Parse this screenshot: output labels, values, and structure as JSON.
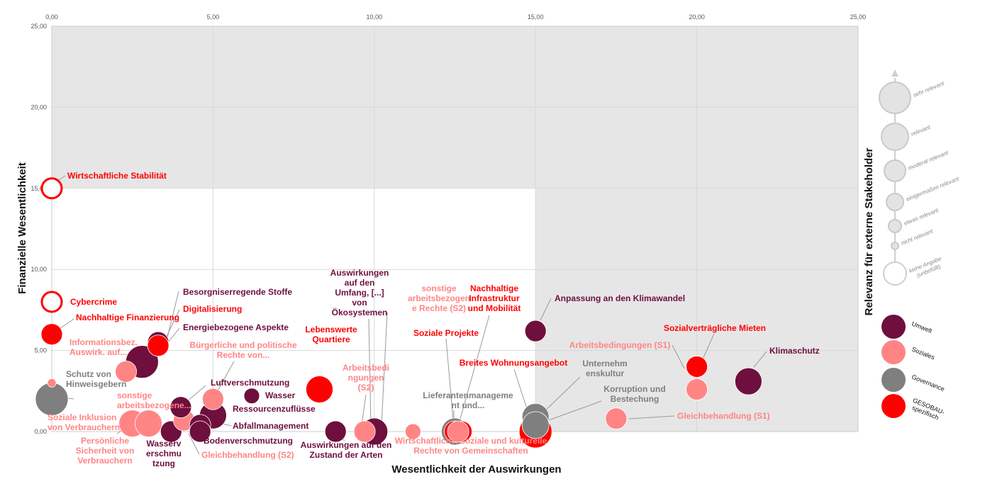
{
  "colors": {
    "umwelt": "#6e0f3e",
    "soziales": "#ff8585",
    "governance": "#7f7f7f",
    "gesobau": "#ff0000"
  },
  "chart_data": {
    "type": "scatter",
    "xlabel": "Wesentlichkeit der Auswirkungen",
    "ylabel": "Finanzielle Wesentlichkeit",
    "size_legend_title": "Relevanz für externe Stakeholder",
    "xlim": [
      0,
      25
    ],
    "ylim": [
      0,
      25
    ],
    "xticks": [
      "0,00",
      "5,00",
      "10,00",
      "15,00",
      "20,00",
      "25,00"
    ],
    "yticks": [
      "0,00",
      "5,00",
      "10,00",
      "15,00",
      "20,00",
      "25,00"
    ],
    "shaded_regions": [
      {
        "x": [
          0,
          25
        ],
        "y": [
          15,
          25
        ]
      },
      {
        "x": [
          15,
          25
        ],
        "y": [
          0,
          15
        ]
      }
    ],
    "grid": true,
    "legend_position": "right",
    "size_legend": [
      {
        "label": "sehr relevant",
        "size": 6
      },
      {
        "label": "relevant",
        "size": 5
      },
      {
        "label": "moderat relevant",
        "size": 4
      },
      {
        "label": "einigermaßen relevant",
        "size": 3
      },
      {
        "label": "etwas relevant",
        "size": 2
      },
      {
        "label": "nicht relevant",
        "size": 1
      },
      {
        "label": "keine Angabe (unbefüllt)",
        "size": 0
      }
    ],
    "categories": [
      {
        "key": "umwelt",
        "label": "Umwelt"
      },
      {
        "key": "soziales",
        "label": "Soziales"
      },
      {
        "key": "governance",
        "label": "Governance"
      },
      {
        "key": "gesobau",
        "label": "GESOBAU-spezifisch"
      }
    ],
    "points": [
      {
        "label": "Wirtschaftliche Stabilität",
        "x": 0,
        "y": 15,
        "size": 0,
        "cat": "gesobau"
      },
      {
        "label": "Cybercrime",
        "x": 0,
        "y": 8,
        "size": 0,
        "cat": "gesobau"
      },
      {
        "label": "Nachhaltige Finanzierung",
        "x": 0,
        "y": 6,
        "size": 3,
        "cat": "gesobau"
      },
      {
        "label": "Informationsbez. Auswirk. auf...",
        "x": 0,
        "y": 3,
        "size": 1,
        "cat": "soziales"
      },
      {
        "label": "Schutz von Hinweisgebern",
        "x": 0,
        "y": 2,
        "size": 5,
        "cat": "governance"
      },
      {
        "label": "Soziale Inklusion von Verbrauchern",
        "x": 2.5,
        "y": 0.5,
        "size": 4,
        "cat": "soziales"
      },
      {
        "label": "sonstige arbeitsbezogene...",
        "x": 2.3,
        "y": 3.7,
        "size": 3,
        "cat": "soziales"
      },
      {
        "label": "Persönliche Sicherheit von Verbrauchern",
        "x": 3,
        "y": 0.5,
        "size": 4,
        "cat": "soziales"
      },
      {
        "label": "Besorgniserregende Stoffe",
        "x": 3.3,
        "y": 5.5,
        "size": 3,
        "cat": "umwelt"
      },
      {
        "label": "Digitalisierung",
        "x": 3.3,
        "y": 5.3,
        "size": 3,
        "cat": "gesobau"
      },
      {
        "label": "Energiebezogene Aspekte",
        "x": 2.8,
        "y": 4.3,
        "size": 5,
        "cat": "umwelt"
      },
      {
        "label": "Wasserverschmutzung",
        "x": 3.7,
        "y": 0,
        "size": 3,
        "cat": "umwelt"
      },
      {
        "label": "Gleichbehandlung (S2)",
        "x": 4.1,
        "y": 0.7,
        "size": 3,
        "cat": "soziales"
      },
      {
        "label": "Luftverschmutzung",
        "x": 4,
        "y": 1.5,
        "size": 3,
        "cat": "umwelt"
      },
      {
        "label": "Bürgerliche und politische Rechte von...",
        "x": 5,
        "y": 2,
        "size": 3,
        "cat": "soziales"
      },
      {
        "label": "Ressourcenzuflüsse",
        "x": 5,
        "y": 1,
        "size": 4,
        "cat": "umwelt"
      },
      {
        "label": "Abfallmanagement",
        "x": 4.6,
        "y": 0.4,
        "size": 3,
        "cat": "umwelt"
      },
      {
        "label": "Bodenverschmutzung",
        "x": 4.6,
        "y": 0,
        "size": 3,
        "cat": "umwelt"
      },
      {
        "label": "Wasser",
        "x": 6.2,
        "y": 2.2,
        "size": 2,
        "cat": "umwelt"
      },
      {
        "label": "Lebenswerte Quartiere",
        "x": 8.3,
        "y": 2.6,
        "size": 4,
        "cat": "gesobau"
      },
      {
        "label": "Auswirkungen auf den Zustand der Arten",
        "x": 8.8,
        "y": 0,
        "size": 3,
        "cat": "umwelt"
      },
      {
        "label": "Arbeitsbedingungen (S2)",
        "x": 9.7,
        "y": 0,
        "size": 3,
        "cat": "soziales"
      },
      {
        "label": "Auswirkungen auf den Umfang, [...] von Ökosystemen",
        "x": 10,
        "y": 0,
        "size": 4,
        "cat": "umwelt"
      },
      {
        "label": "sonstige arbeitsbezogene Rechte (S2)",
        "x": 11.2,
        "y": 0,
        "size": 2,
        "cat": "soziales"
      },
      {
        "label": "Lieferantenmanagement und...",
        "x": 12.5,
        "y": 0,
        "size": 4,
        "cat": "governance"
      },
      {
        "label": "Soziale Projekte",
        "x": 12.5,
        "y": 0,
        "size": 3,
        "cat": "gesobau"
      },
      {
        "label": "Nachhaltige Infrastruktur und Mobilität",
        "x": 12.7,
        "y": 0,
        "size": 3,
        "cat": "gesobau"
      },
      {
        "label": "Wirtschaftliche, soziale und kulturelle Rechte von Gemeinschaften",
        "x": 12.6,
        "y": 0,
        "size": 3,
        "cat": "soziales"
      },
      {
        "label": "Unternehmenskultur",
        "x": 15,
        "y": 0.9,
        "size": 4,
        "cat": "governance"
      },
      {
        "label": "Korruption und Bestechung",
        "x": 15,
        "y": 0.4,
        "size": 4,
        "cat": "governance"
      },
      {
        "label": "Breites Wohnungsangebot",
        "x": 15,
        "y": 0,
        "size": 5,
        "cat": "gesobau"
      },
      {
        "label": "Anpassung an den Klimawandel",
        "x": 15,
        "y": 6.2,
        "size": 3,
        "cat": "umwelt"
      },
      {
        "label": "Gleichbehandlung (S1)",
        "x": 17.5,
        "y": 0.8,
        "size": 3,
        "cat": "soziales"
      },
      {
        "label": "Sozialverträgliche Mieten",
        "x": 20,
        "y": 4,
        "size": 3,
        "cat": "gesobau"
      },
      {
        "label": "Arbeitsbedingungen (S1)",
        "x": 20,
        "y": 2.6,
        "size": 3,
        "cat": "soziales"
      },
      {
        "label": "Klimaschutz",
        "x": 21.6,
        "y": 3.1,
        "size": 4,
        "cat": "umwelt"
      }
    ],
    "annotations": [
      {
        "text": [
          "Wirtschaftliche Stabilität"
        ],
        "point": 0,
        "cat": "gesobau",
        "tx": 95,
        "ty": 252,
        "anchor": "start",
        "line": [
          [
            92,
            248
          ],
          [
            80,
            256
          ]
        ]
      },
      {
        "text": [
          "Cybercrime"
        ],
        "point": 1,
        "cat": "gesobau",
        "tx": 99,
        "ty": 430,
        "anchor": "start",
        "line": null
      },
      {
        "text": [
          "Nachhaltige Finanzierung"
        ],
        "point": 2,
        "cat": "gesobau",
        "tx": 107,
        "ty": 452,
        "anchor": "start",
        "line": [
          [
            104,
            450
          ],
          [
            84,
            464
          ]
        ]
      },
      {
        "text": [
          "Informationsbez.",
          "Auswirk. auf..."
        ],
        "point": 3,
        "cat": "soziales",
        "tx": 98,
        "ty": 487,
        "anchor": "start",
        "line": null
      },
      {
        "text": [
          "Schutz von",
          "Hinweisgebern"
        ],
        "point": 4,
        "cat": "governance",
        "tx": 93,
        "ty": 532,
        "anchor": "start",
        "line": [
          [
            104,
            563
          ],
          [
            82,
            560
          ]
        ]
      },
      {
        "text": [
          "sonstige",
          "arbeitsbezogene..."
        ],
        "point": 6,
        "cat": "soziales",
        "tx": 165,
        "ty": 562,
        "anchor": "start",
        "line": null
      },
      {
        "text": [
          "Soziale Inklusion",
          "von Verbrauchern"
        ],
        "point": 5,
        "cat": "soziales",
        "tx": 67,
        "ty": 593,
        "anchor": "start",
        "line": null
      },
      {
        "text": [
          "Persönliche",
          "Sicherheit von",
          "Verbrauchern"
        ],
        "point": 7,
        "cat": "soziales",
        "tx": 148,
        "ty": 626,
        "anchor": "middle",
        "line": [
          [
            165,
            612
          ],
          [
            176,
            604
          ]
        ]
      },
      {
        "text": [
          "Besorgniserregende Stoffe"
        ],
        "point": 8,
        "cat": "umwelt",
        "tx": 258,
        "ty": 416,
        "anchor": "start",
        "line": [
          [
            252,
            411
          ],
          [
            236,
            476
          ]
        ]
      },
      {
        "text": [
          "Digitalisierung"
        ],
        "point": 9,
        "cat": "gesobau",
        "tx": 258,
        "ty": 440,
        "anchor": "start",
        "line": [
          [
            253,
            437
          ],
          [
            232,
            481
          ]
        ]
      },
      {
        "text": [
          "Energiebezogene Aspekte"
        ],
        "point": 10,
        "cat": "umwelt",
        "tx": 258,
        "ty": 466,
        "anchor": "start",
        "line": [
          [
            253,
            463
          ],
          [
            226,
            497
          ]
        ]
      },
      {
        "text": [
          "Bürgerliche und politische",
          "Rechte von..."
        ],
        "point": 14,
        "cat": "soziales",
        "tx": 343,
        "ty": 491,
        "anchor": "middle",
        "line": [
          [
            330,
            510
          ],
          [
            305,
            555
          ]
        ]
      },
      {
        "text": [
          "Luftverschmutzung"
        ],
        "point": 13,
        "cat": "umwelt",
        "tx": 297,
        "ty": 544,
        "anchor": "start",
        "line": [
          [
            290,
            544
          ],
          [
            262,
            568
          ]
        ]
      },
      {
        "text": [
          "Wasser"
        ],
        "point": 18,
        "cat": "umwelt",
        "tx": 374,
        "ty": 562,
        "anchor": "start",
        "line": null
      },
      {
        "text": [
          "Ressourcenzuflüsse"
        ],
        "point": 15,
        "cat": "umwelt",
        "tx": 328,
        "ty": 581,
        "anchor": "start",
        "line": null
      },
      {
        "text": [
          "Abfallmanagement"
        ],
        "point": 16,
        "cat": "umwelt",
        "tx": 328,
        "ty": 605,
        "anchor": "start",
        "line": [
          [
            326,
            601
          ],
          [
            285,
            591
          ]
        ]
      },
      {
        "text": [
          "Bodenverschmutzung"
        ],
        "point": 17,
        "cat": "umwelt",
        "tx": 287,
        "ty": 626,
        "anchor": "start",
        "line": [
          [
            285,
            618
          ],
          [
            285,
            608
          ]
        ]
      },
      {
        "text": [
          "Wasserv",
          "erschmu",
          "tzung"
        ],
        "point": 11,
        "cat": "umwelt",
        "tx": 231,
        "ty": 630,
        "anchor": "middle",
        "line": null
      },
      {
        "text": [
          "Gleichbehandlung (S2)"
        ],
        "point": 12,
        "cat": "soziales",
        "tx": 284,
        "ty": 646,
        "anchor": "start",
        "line": [
          [
            281,
            641
          ],
          [
            266,
            612
          ]
        ]
      },
      {
        "text": [
          "Lebenswerte",
          "Quartiere"
        ],
        "point": 19,
        "cat": "gesobau",
        "tx": 467,
        "ty": 469,
        "anchor": "middle",
        "line": null
      },
      {
        "text": [
          "Auswirkungen",
          "auf den",
          "Umfang, [...]",
          "von",
          "Ökosystemen"
        ],
        "point": 22,
        "cat": "umwelt",
        "tx": 507,
        "ty": 389,
        "anchor": "middle",
        "line": [
          [
            520,
            450
          ],
          [
            523,
            600
          ]
        ]
      },
      {
        "text": [
          "Arbeitsbedi",
          "ngungen",
          "(S2)"
        ],
        "point": 21,
        "cat": "soziales",
        "tx": 516,
        "ty": 523,
        "anchor": "middle",
        "line": [
          [
            516,
            557
          ],
          [
            510,
            600
          ]
        ]
      },
      {
        "text": [
          "sonstige",
          "arbeitsbezogen",
          "e Rechte (S2)"
        ],
        "point": 23,
        "cat": "soziales",
        "tx": 619,
        "ty": 411,
        "anchor": "middle",
        "line": [
          [
            546,
            441
          ],
          [
            538,
            600
          ]
        ]
      },
      {
        "text": [
          "Auswirkungen auf den",
          "Zustand der Arten"
        ],
        "point": 20,
        "cat": "umwelt",
        "tx": 488,
        "ty": 632,
        "anchor": "middle",
        "line": [
          [
            486,
            622
          ],
          [
            472,
            610
          ]
        ]
      },
      {
        "text": [
          "Nachhaltige",
          "Infrastruktur",
          "und Mobilität"
        ],
        "point": 26,
        "cat": "gesobau",
        "tx": 697,
        "ty": 411,
        "anchor": "middle",
        "line": [
          [
            690,
            445
          ],
          [
            645,
            605
          ]
        ]
      },
      {
        "text": [
          "Soziale Projekte"
        ],
        "point": 25,
        "cat": "gesobau",
        "tx": 629,
        "ty": 474,
        "anchor": "middle",
        "line": [
          [
            629,
            478
          ],
          [
            640,
            605
          ]
        ]
      },
      {
        "text": [
          "Lieferantenmanageme",
          "nt und..."
        ],
        "point": 24,
        "cat": "governance",
        "tx": 660,
        "ty": 562,
        "anchor": "middle",
        "line": [
          [
            640,
            579
          ],
          [
            640,
            600
          ]
        ]
      },
      {
        "text": [
          "Breites Wohnungsangebot"
        ],
        "point": 30,
        "cat": "gesobau",
        "tx": 724,
        "ty": 516,
        "anchor": "middle",
        "line": [
          [
            725,
            521
          ],
          [
            752,
            605
          ]
        ]
      },
      {
        "text": [
          "Wirtschaftliche, soziale und kulturelle",
          "Rechte von Gemeinschaften"
        ],
        "point": 27,
        "cat": "soziales",
        "tx": 664,
        "ty": 626,
        "anchor": "middle",
        "line": [
          [
            655,
            619
          ],
          [
            643,
            609
          ]
        ]
      },
      {
        "text": [
          "Unternehm",
          "enskultur"
        ],
        "point": 28,
        "cat": "governance",
        "tx": 853,
        "ty": 517,
        "anchor": "middle",
        "line": [
          [
            818,
            532
          ],
          [
            764,
            584
          ]
        ]
      },
      {
        "text": [
          "Korruption und",
          "Bestechung"
        ],
        "point": 29,
        "cat": "governance",
        "tx": 895,
        "ty": 553,
        "anchor": "middle",
        "line": [
          [
            848,
            566
          ],
          [
            768,
            595
          ]
        ]
      },
      {
        "text": [
          "Anpassung an den Klimawandel"
        ],
        "point": 31,
        "cat": "umwelt",
        "tx": 782,
        "ty": 425,
        "anchor": "start",
        "line": [
          [
            777,
            421
          ],
          [
            762,
            452
          ]
        ]
      },
      {
        "text": [
          "Sozialverträgliche Mieten"
        ],
        "point": 33,
        "cat": "gesobau",
        "tx": 1008,
        "ty": 467,
        "anchor": "middle",
        "line": [
          [
            1007,
            471
          ],
          [
            990,
            509
          ]
        ]
      },
      {
        "text": [
          "Arbeitsbedingungen (S1)"
        ],
        "point": 34,
        "cat": "soziales",
        "tx": 874,
        "ty": 491,
        "anchor": "middle",
        "line": [
          [
            948,
            487
          ],
          [
            965,
            520
          ]
        ]
      },
      {
        "text": [
          "Klimaschutz"
        ],
        "point": 35,
        "cat": "umwelt",
        "tx": 1085,
        "ty": 499,
        "anchor": "start",
        "line": [
          [
            1081,
            496
          ],
          [
            1063,
            518
          ]
        ]
      },
      {
        "text": [
          "Gleichbehandlung (S1)"
        ],
        "point": 32,
        "cat": "soziales",
        "tx": 955,
        "ty": 591,
        "anchor": "start",
        "line": [
          [
            951,
            587
          ],
          [
            887,
            591
          ]
        ]
      }
    ]
  }
}
